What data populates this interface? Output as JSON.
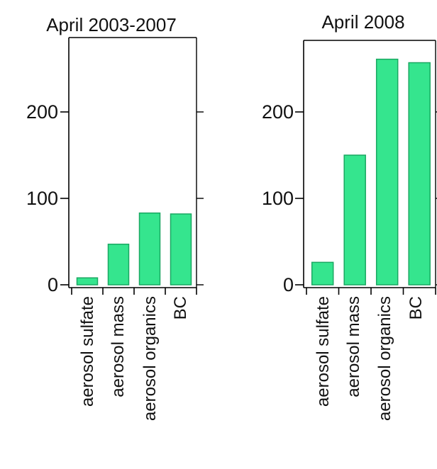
{
  "chart_data": [
    {
      "type": "bar",
      "title": "April 2003-2007",
      "categories": [
        "aerosol sulfate",
        "aerosol mass",
        "aerosol organics",
        "BC"
      ],
      "values": [
        8,
        47,
        83,
        82
      ],
      "ylim": [
        0,
        270
      ],
      "yticks": [
        0,
        100,
        200
      ],
      "ytick_labels": [
        "0",
        "100",
        "200"
      ],
      "grid": false,
      "bar_color": "#35e58e",
      "bar_edge_color": "#1aa862"
    },
    {
      "type": "bar",
      "title": "April 2008",
      "categories": [
        "aerosol sulfate",
        "aerosol mass",
        "aerosol organics",
        "BC"
      ],
      "values": [
        26,
        150,
        261,
        257
      ],
      "ylim": [
        0,
        282
      ],
      "yticks": [
        0,
        100,
        200
      ],
      "ytick_labels": [
        "0",
        "100",
        "200"
      ],
      "grid": false,
      "bar_color": "#35e58e",
      "bar_edge_color": "#1aa862"
    }
  ]
}
